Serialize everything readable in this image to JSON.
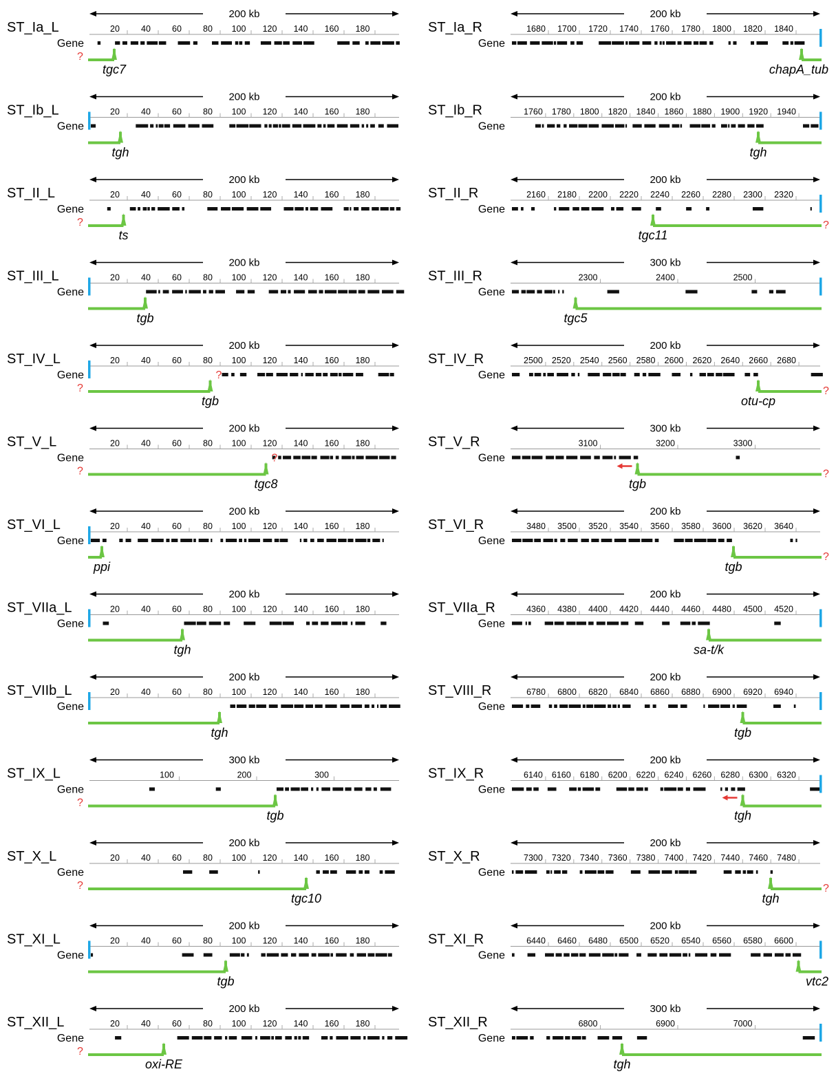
{
  "colors": {
    "end_bar": "#1ea7e6",
    "marker": "#6cc644",
    "unknown": "#e53935",
    "arrow": "#e53935",
    "gene": "#111111"
  },
  "panels": [
    {
      "title": "ST_Ia_L",
      "scale": "200 kb",
      "ticks": [
        "20",
        "40",
        "60",
        "80",
        "100",
        "120",
        "140",
        "160",
        "180"
      ],
      "gene_label": "Gene",
      "gene_name": "tgc7",
      "unknown_left": true,
      "unknown_right": false,
      "unknown_mid": false,
      "end_bar": false,
      "side": "L",
      "region": [
        0.0,
        0.08
      ],
      "mark": 0.08
    },
    {
      "title": "ST_Ia_R",
      "scale": "200 kb",
      "ticks": [
        "1680",
        "1700",
        "1720",
        "1740",
        "1760",
        "1780",
        "1800",
        "1820",
        "1840"
      ],
      "gene_label": "Gene",
      "gene_name": "chapA_tub",
      "unknown_left": false,
      "unknown_right": false,
      "unknown_mid": false,
      "end_bar": true,
      "side": "R",
      "region": [
        0.94,
        1.0
      ],
      "mark": 0.94
    },
    {
      "title": "ST_Ib_L",
      "scale": "200 kb",
      "ticks": [
        "20",
        "40",
        "60",
        "80",
        "100",
        "120",
        "140",
        "160",
        "180"
      ],
      "gene_label": "Gene",
      "gene_name": "tgh",
      "unknown_left": false,
      "unknown_right": false,
      "unknown_mid": false,
      "end_bar": true,
      "side": "L",
      "region": [
        0.0,
        0.1
      ],
      "mark": 0.1
    },
    {
      "title": "ST_Ib_R",
      "scale": "200 kb",
      "ticks": [
        "1760",
        "1780",
        "1800",
        "1820",
        "1840",
        "1860",
        "1880",
        "1900",
        "1920",
        "1940"
      ],
      "gene_label": "Gene",
      "gene_name": "tgh",
      "unknown_left": false,
      "unknown_right": false,
      "unknown_mid": false,
      "end_bar": true,
      "side": "R",
      "region": [
        0.8,
        1.0
      ],
      "mark": 0.8
    },
    {
      "title": "ST_II_L",
      "scale": "200 kb",
      "ticks": [
        "20",
        "40",
        "60",
        "80",
        "100",
        "120",
        "140",
        "160",
        "180"
      ],
      "gene_label": "Gene",
      "gene_name": "ts",
      "unknown_left": true,
      "unknown_right": false,
      "unknown_mid": false,
      "end_bar": false,
      "side": "L",
      "region": [
        0.0,
        0.11
      ],
      "mark": 0.11
    },
    {
      "title": "ST_II_R",
      "scale": "200 kb",
      "ticks": [
        "2160",
        "2180",
        "2200",
        "2220",
        "2240",
        "2260",
        "2280",
        "2300",
        "2320"
      ],
      "gene_label": "Gene",
      "gene_name": "tgc11",
      "unknown_left": false,
      "unknown_right": true,
      "unknown_mid": false,
      "end_bar": true,
      "side": "R",
      "region": [
        0.46,
        1.0
      ],
      "mark": 0.46
    },
    {
      "title": "ST_III_L",
      "scale": "200 kb",
      "ticks": [
        "20",
        "40",
        "60",
        "80",
        "100",
        "120",
        "140",
        "160",
        "180"
      ],
      "gene_label": "Gene",
      "gene_name": "tgb",
      "unknown_left": false,
      "unknown_right": false,
      "unknown_mid": false,
      "end_bar": true,
      "side": "L",
      "region": [
        0.0,
        0.18
      ],
      "mark": 0.18
    },
    {
      "title": "ST_III_R",
      "scale": "300 kb",
      "ticks": [
        "2300",
        "2400",
        "2500"
      ],
      "gene_label": "Gene",
      "gene_name": "tgc5",
      "unknown_left": false,
      "unknown_right": false,
      "unknown_mid": false,
      "end_bar": true,
      "side": "R",
      "region": [
        0.21,
        1.0
      ],
      "mark": 0.21
    },
    {
      "title": "ST_IV_L",
      "scale": "200 kb",
      "ticks": [
        "20",
        "40",
        "60",
        "80",
        "100",
        "120",
        "140",
        "160",
        "180"
      ],
      "gene_label": "Gene",
      "gene_name": "tgb",
      "unknown_left": true,
      "unknown_right": false,
      "unknown_mid": true,
      "end_bar": true,
      "side": "L",
      "region": [
        0.0,
        0.39
      ],
      "mark": 0.39
    },
    {
      "title": "ST_IV_R",
      "scale": "200 kb",
      "ticks": [
        "2500",
        "2520",
        "2540",
        "2560",
        "2580",
        "2600",
        "2620",
        "2640",
        "2660",
        "2680"
      ],
      "gene_label": "Gene",
      "gene_name": "otu-cp",
      "unknown_left": false,
      "unknown_right": true,
      "unknown_mid": false,
      "end_bar": false,
      "side": "R",
      "region": [
        0.8,
        1.0
      ],
      "mark": 0.8
    },
    {
      "title": "ST_V_L",
      "scale": "200 kb",
      "ticks": [
        "20",
        "40",
        "60",
        "80",
        "100",
        "120",
        "140",
        "160",
        "180"
      ],
      "gene_label": "Gene",
      "gene_name": "tgc8",
      "unknown_left": true,
      "unknown_right": false,
      "unknown_mid": true,
      "end_bar": false,
      "side": "L",
      "region": [
        0.0,
        0.57
      ],
      "mark": 0.57
    },
    {
      "title": "ST_V_R",
      "scale": "300 kb",
      "ticks": [
        "3100",
        "3200",
        "3300"
      ],
      "gene_label": "Gene",
      "gene_name": "tgb",
      "unknown_left": false,
      "unknown_right": true,
      "unknown_mid": false,
      "end_bar": false,
      "side": "R",
      "region": [
        0.41,
        1.0
      ],
      "mark": 0.41,
      "red_arrow": true
    },
    {
      "title": "ST_VI_L",
      "scale": "200 kb",
      "ticks": [
        "20",
        "40",
        "60",
        "80",
        "100",
        "120",
        "140",
        "160",
        "180"
      ],
      "gene_label": "Gene",
      "gene_name": "ppi",
      "unknown_left": false,
      "unknown_right": false,
      "unknown_mid": false,
      "end_bar": true,
      "side": "L",
      "region": [
        0.0,
        0.04
      ],
      "mark": 0.04
    },
    {
      "title": "ST_VI_R",
      "scale": "200 kb",
      "ticks": [
        "3480",
        "3500",
        "3520",
        "3540",
        "3560",
        "3580",
        "3600",
        "3620",
        "3640"
      ],
      "gene_label": "Gene",
      "gene_name": "tgb",
      "unknown_left": false,
      "unknown_right": true,
      "unknown_mid": false,
      "end_bar": false,
      "side": "R",
      "region": [
        0.72,
        1.0
      ],
      "mark": 0.72
    },
    {
      "title": "ST_VIIa_L",
      "scale": "200 kb",
      "ticks": [
        "20",
        "40",
        "60",
        "80",
        "100",
        "120",
        "140",
        "160",
        "180"
      ],
      "gene_label": "Gene",
      "gene_name": "tgh",
      "unknown_left": false,
      "unknown_right": false,
      "unknown_mid": false,
      "end_bar": true,
      "side": "L",
      "region": [
        0.0,
        0.3
      ],
      "mark": 0.3
    },
    {
      "title": "ST_VIIa_R",
      "scale": "200 kb",
      "ticks": [
        "4360",
        "4380",
        "4400",
        "4420",
        "4440",
        "4460",
        "4480",
        "4500",
        "4520"
      ],
      "gene_label": "Gene",
      "gene_name": "sa-t/k",
      "unknown_left": false,
      "unknown_right": false,
      "unknown_mid": false,
      "end_bar": true,
      "side": "R",
      "region": [
        0.64,
        1.0
      ],
      "mark": 0.64
    },
    {
      "title": "ST_VIIb_L",
      "scale": "200 kb",
      "ticks": [
        "20",
        "40",
        "60",
        "80",
        "100",
        "120",
        "140",
        "160",
        "180"
      ],
      "gene_label": "Gene",
      "gene_name": "tgh",
      "unknown_left": false,
      "unknown_right": false,
      "unknown_mid": false,
      "end_bar": true,
      "side": "L",
      "region": [
        0.0,
        0.42
      ],
      "mark": 0.42
    },
    {
      "title": "ST_VIII_R",
      "scale": "200 kb",
      "ticks": [
        "6780",
        "6800",
        "6820",
        "6840",
        "6860",
        "6880",
        "6900",
        "6920",
        "6940"
      ],
      "gene_label": "Gene",
      "gene_name": "tgb",
      "unknown_left": false,
      "unknown_right": false,
      "unknown_mid": false,
      "end_bar": true,
      "side": "R",
      "region": [
        0.75,
        1.0
      ],
      "mark": 0.75
    },
    {
      "title": "ST_IX_L",
      "scale": "300 kb",
      "ticks": [
        "100",
        "200",
        "300"
      ],
      "gene_label": "Gene",
      "gene_name": "tgb",
      "unknown_left": true,
      "unknown_right": false,
      "unknown_mid": false,
      "end_bar": false,
      "side": "L",
      "region": [
        0.0,
        0.6
      ],
      "mark": 0.6
    },
    {
      "title": "ST_IX_R",
      "scale": "200 kb",
      "ticks": [
        "6140",
        "6160",
        "6180",
        "6200",
        "6220",
        "6240",
        "6260",
        "6280",
        "6300",
        "6320"
      ],
      "gene_label": "Gene",
      "gene_name": "tgh",
      "unknown_left": false,
      "unknown_right": false,
      "unknown_mid": false,
      "end_bar": true,
      "side": "R",
      "region": [
        0.75,
        1.0
      ],
      "mark": 0.75,
      "red_arrow": true
    },
    {
      "title": "ST_X_L",
      "scale": "200 kb",
      "ticks": [
        "20",
        "40",
        "60",
        "80",
        "100",
        "120",
        "140",
        "160",
        "180"
      ],
      "gene_label": "Gene",
      "gene_name": "tgc10",
      "unknown_left": true,
      "unknown_right": false,
      "unknown_mid": false,
      "end_bar": false,
      "side": "L",
      "region": [
        0.0,
        0.7
      ],
      "mark": 0.7
    },
    {
      "title": "ST_X_R",
      "scale": "200 kb",
      "ticks": [
        "7300",
        "7320",
        "7340",
        "7360",
        "7380",
        "7400",
        "7420",
        "7440",
        "7460",
        "7480"
      ],
      "gene_label": "Gene",
      "gene_name": "tgh",
      "unknown_left": false,
      "unknown_right": true,
      "unknown_mid": false,
      "end_bar": false,
      "side": "R",
      "region": [
        0.84,
        1.0
      ],
      "mark": 0.84
    },
    {
      "title": "ST_XI_L",
      "scale": "200 kb",
      "ticks": [
        "20",
        "40",
        "60",
        "80",
        "100",
        "120",
        "140",
        "160",
        "180"
      ],
      "gene_label": "Gene",
      "gene_name": "tgb",
      "unknown_left": false,
      "unknown_right": false,
      "unknown_mid": false,
      "end_bar": true,
      "side": "L",
      "region": [
        0.0,
        0.44
      ],
      "mark": 0.44
    },
    {
      "title": "ST_XI_R",
      "scale": "200 kb",
      "ticks": [
        "6440",
        "6460",
        "6480",
        "6500",
        "6520",
        "6540",
        "6560",
        "6580",
        "6600"
      ],
      "gene_label": "Gene",
      "gene_name": "vtc2",
      "unknown_left": false,
      "unknown_right": false,
      "unknown_mid": false,
      "end_bar": true,
      "side": "R",
      "region": [
        0.93,
        1.0
      ],
      "mark": 0.93
    },
    {
      "title": "ST_XII_L",
      "scale": "200 kb",
      "ticks": [
        "20",
        "40",
        "60",
        "80",
        "100",
        "120",
        "140",
        "160",
        "180"
      ],
      "gene_label": "Gene",
      "gene_name": "oxi-RE",
      "unknown_left": true,
      "unknown_right": false,
      "unknown_mid": false,
      "end_bar": false,
      "side": "L",
      "region": [
        0.0,
        0.24
      ],
      "mark": 0.24
    },
    {
      "title": "ST_XII_R",
      "scale": "300 kb",
      "ticks": [
        "6800",
        "6900",
        "7000"
      ],
      "gene_label": "Gene",
      "gene_name": "tgh",
      "unknown_left": false,
      "unknown_right": false,
      "unknown_mid": false,
      "end_bar": true,
      "side": "R",
      "region": [
        0.36,
        1.0
      ],
      "mark": 0.36
    }
  ]
}
